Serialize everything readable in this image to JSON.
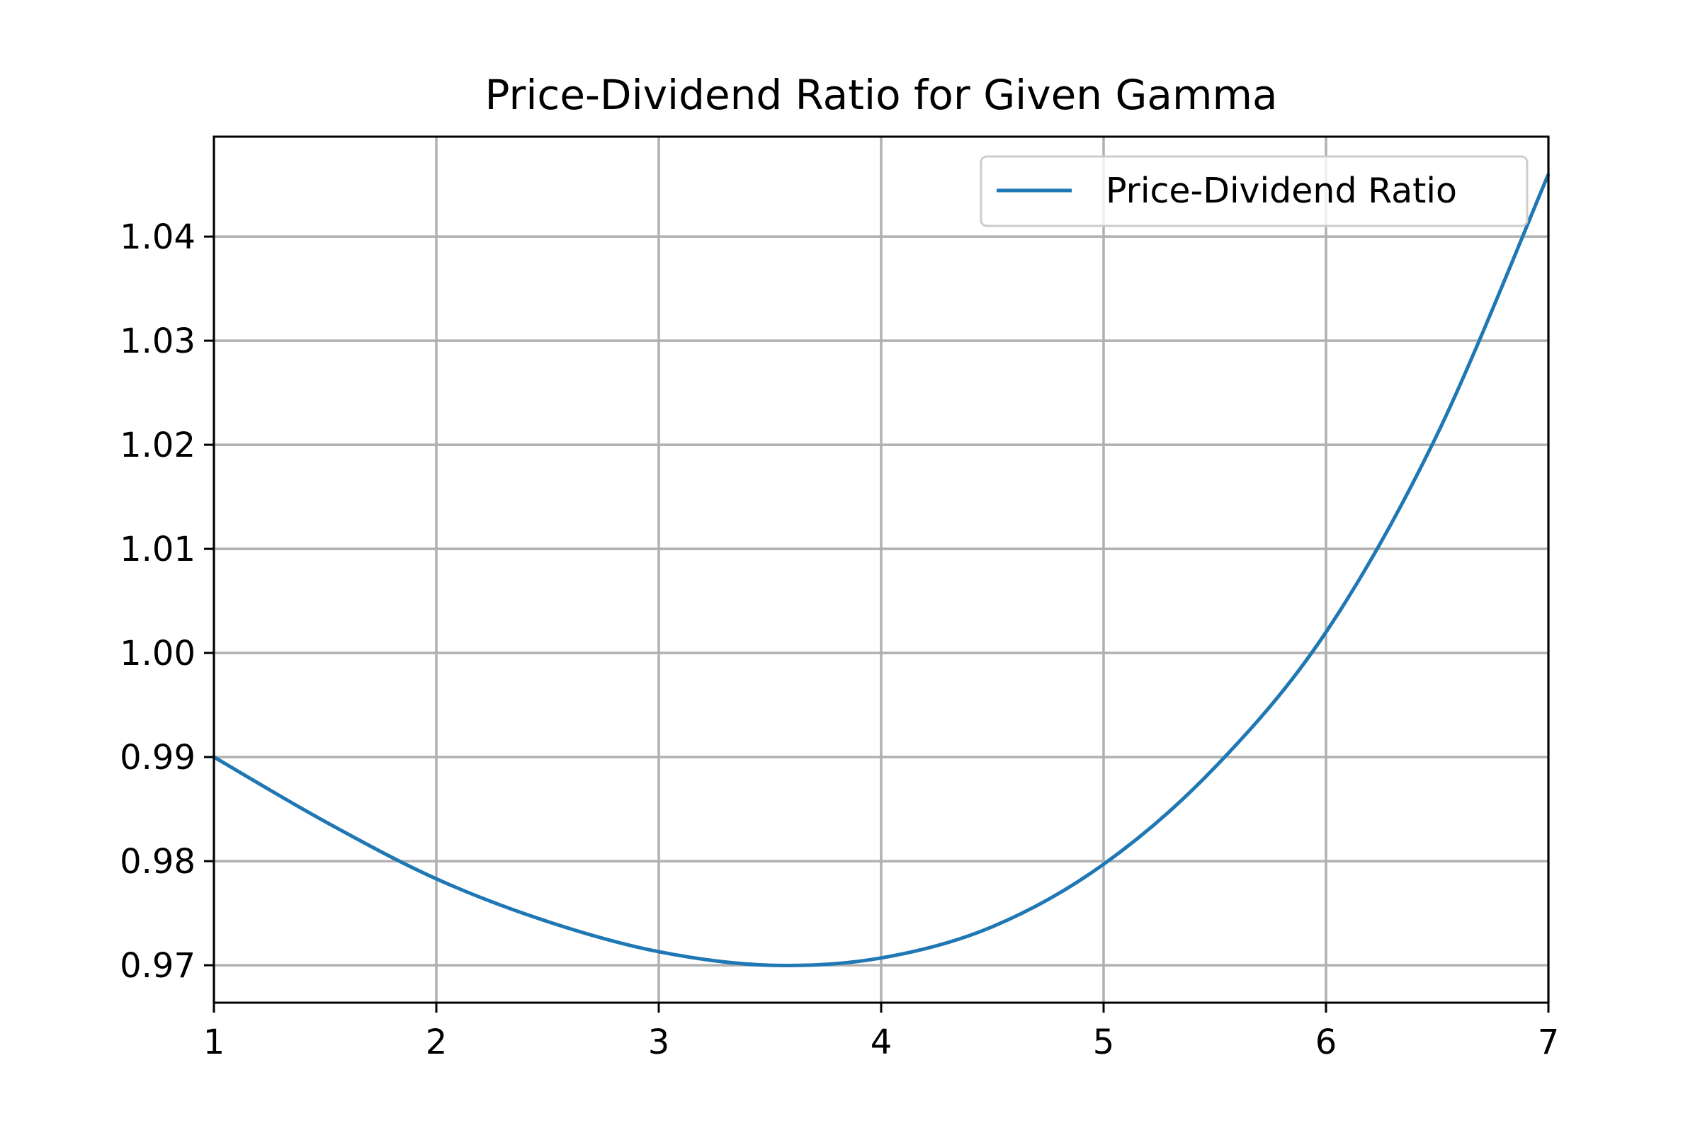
{
  "chart_data": {
    "type": "line",
    "title": "Price-Dividend Ratio for Given Gamma",
    "xlabel": "",
    "ylabel": "",
    "xlim": [
      1,
      7
    ],
    "ylim": [
      0.9664,
      1.0496
    ],
    "x_ticks": [
      "1",
      "2",
      "3",
      "4",
      "5",
      "6",
      "7"
    ],
    "x_tick_values": [
      1,
      2,
      3,
      4,
      5,
      6,
      7
    ],
    "y_ticks": [
      "0.97",
      "0.98",
      "0.99",
      "1.00",
      "1.01",
      "1.02",
      "1.03",
      "1.04"
    ],
    "y_tick_values": [
      0.97,
      0.98,
      0.99,
      1.0,
      1.01,
      1.02,
      1.03,
      1.04
    ],
    "grid": true,
    "legend_position": "top-right",
    "series": [
      {
        "name": "Price-Dividend Ratio",
        "color": "#1f77b4",
        "x": [
          1.0,
          1.5,
          2.0,
          2.5,
          3.0,
          3.5,
          4.0,
          4.5,
          5.0,
          5.5,
          6.0,
          6.5,
          7.0
        ],
        "y": [
          0.99,
          0.9838,
          0.9783,
          0.9742,
          0.9713,
          0.97,
          0.9707,
          0.9737,
          0.9797,
          0.989,
          1.002,
          1.021,
          1.046
        ]
      }
    ]
  }
}
